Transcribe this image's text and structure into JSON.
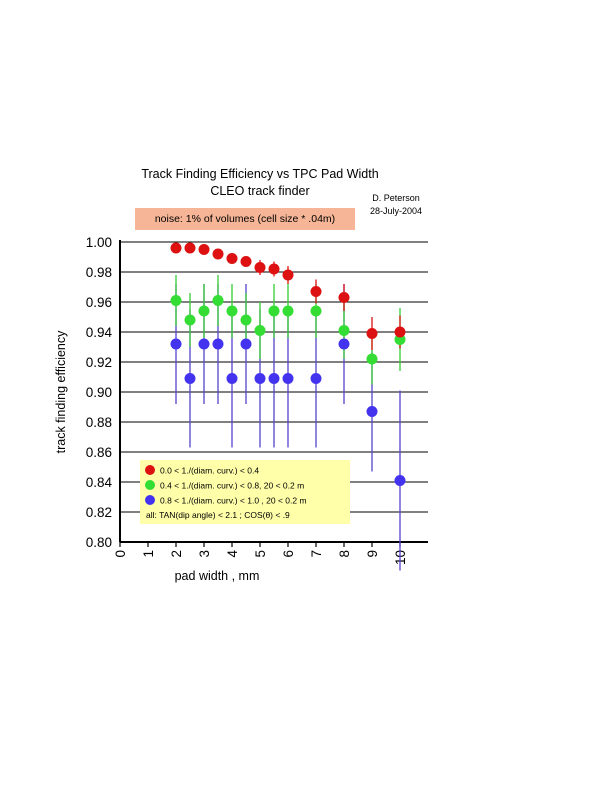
{
  "header": {
    "title": "Track Finding Efficiency vs TPC Pad Width",
    "subtitle": "CLEO track finder",
    "author": "D. Peterson",
    "date": "28-July-2004",
    "noise_note": "noise: 1% of volumes (cell size * .04m)"
  },
  "chart_data": {
    "type": "scatter",
    "title": "Track Finding Efficiency vs TPC Pad Width",
    "subtitle": "CLEO track finder",
    "xlabel": "pad width , mm",
    "ylabel": "track finding efficiency",
    "xlim": [
      0,
      11
    ],
    "ylim": [
      0.8,
      1.0
    ],
    "xticks": [
      "0",
      "1",
      "2",
      "3",
      "4",
      "5",
      "6",
      "7",
      "8",
      "9",
      "10"
    ],
    "yticks": [
      "0.80",
      "0.82",
      "0.84",
      "0.86",
      "0.88",
      "0.90",
      "0.92",
      "0.94",
      "0.96",
      "0.98",
      "1.00"
    ],
    "grid": "horizontal",
    "error_bars": true,
    "legend_position": "bottom-left",
    "legend_background": "#ffffaa",
    "series": [
      {
        "name": "0.0 < 1./(diam. curv.) < 0.4",
        "color": "#dd1111",
        "error_color": "#dd1111",
        "points": [
          {
            "x": 2.0,
            "y": 0.996,
            "err": 0.003
          },
          {
            "x": 2.5,
            "y": 0.996,
            "err": 0.003
          },
          {
            "x": 3.0,
            "y": 0.995,
            "err": 0.003
          },
          {
            "x": 3.5,
            "y": 0.992,
            "err": 0.003
          },
          {
            "x": 4.0,
            "y": 0.989,
            "err": 0.003
          },
          {
            "x": 4.5,
            "y": 0.987,
            "err": 0.003
          },
          {
            "x": 5.0,
            "y": 0.983,
            "err": 0.005
          },
          {
            "x": 5.5,
            "y": 0.982,
            "err": 0.005
          },
          {
            "x": 6.0,
            "y": 0.978,
            "err": 0.006
          },
          {
            "x": 7.0,
            "y": 0.967,
            "err": 0.008
          },
          {
            "x": 8.0,
            "y": 0.963,
            "err": 0.009
          },
          {
            "x": 9.0,
            "y": 0.939,
            "err": 0.011
          },
          {
            "x": 10.0,
            "y": 0.94,
            "err": 0.011
          }
        ]
      },
      {
        "name": "0.4 < 1./(diam. curv.) < 0.8,  20 < 0.2 m",
        "color": "#33dd33",
        "error_color": "#33cc33",
        "points": [
          {
            "x": 2.0,
            "y": 0.961,
            "err": 0.017
          },
          {
            "x": 2.5,
            "y": 0.948,
            "err": 0.018
          },
          {
            "x": 3.0,
            "y": 0.954,
            "err": 0.018
          },
          {
            "x": 3.5,
            "y": 0.961,
            "err": 0.017
          },
          {
            "x": 4.0,
            "y": 0.954,
            "err": 0.018
          },
          {
            "x": 4.5,
            "y": 0.948,
            "err": 0.018
          },
          {
            "x": 5.0,
            "y": 0.941,
            "err": 0.019
          },
          {
            "x": 5.5,
            "y": 0.954,
            "err": 0.018
          },
          {
            "x": 6.0,
            "y": 0.954,
            "err": 0.018
          },
          {
            "x": 7.0,
            "y": 0.954,
            "err": 0.018
          },
          {
            "x": 8.0,
            "y": 0.941,
            "err": 0.019
          },
          {
            "x": 9.0,
            "y": 0.922,
            "err": 0.017
          },
          {
            "x": 10.0,
            "y": 0.935,
            "err": 0.021
          }
        ]
      },
      {
        "name": "0.8 < 1./(diam. curv.) < 1.0 , 20 < 0.2 m",
        "color": "#4433ee",
        "error_color": "#5544cc",
        "points": [
          {
            "x": 2.0,
            "y": 0.932,
            "err": 0.04
          },
          {
            "x": 2.5,
            "y": 0.909,
            "err": 0.046
          },
          {
            "x": 3.0,
            "y": 0.932,
            "err": 0.04
          },
          {
            "x": 3.5,
            "y": 0.932,
            "err": 0.04
          },
          {
            "x": 4.0,
            "y": 0.909,
            "err": 0.046
          },
          {
            "x": 4.5,
            "y": 0.932,
            "err": 0.04
          },
          {
            "x": 5.0,
            "y": 0.909,
            "err": 0.046
          },
          {
            "x": 5.5,
            "y": 0.909,
            "err": 0.046
          },
          {
            "x": 6.0,
            "y": 0.909,
            "err": 0.046
          },
          {
            "x": 7.0,
            "y": 0.909,
            "err": 0.046
          },
          {
            "x": 8.0,
            "y": 0.932,
            "err": 0.04
          },
          {
            "x": 9.0,
            "y": 0.887,
            "err": 0.04
          },
          {
            "x": 10.0,
            "y": 0.841,
            "err": 0.06
          }
        ]
      }
    ],
    "legend_note": "all:   TAN(dip angle) < 2.1 ; COS(θ) < .9"
  }
}
